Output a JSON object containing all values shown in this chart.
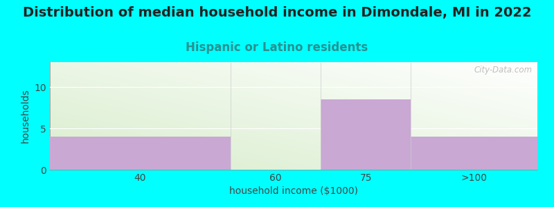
{
  "title": "Distribution of median household income in Dimondale, MI in 2022",
  "subtitle": "Hispanic or Latino residents",
  "xlabel": "household income ($1000)",
  "ylabel": "households",
  "background_color": "#00FFFF",
  "plot_bg_color_top_left": "#d8edcc",
  "plot_bg_color_bottom_right": "#ffffff",
  "bar_color": "#c9a8d4",
  "categories": [
    "40",
    "60",
    "75",
    ">100"
  ],
  "bar_lefts": [
    0.0,
    0.5,
    0.75,
    1.0
  ],
  "bar_rights": [
    0.5,
    0.75,
    1.0,
    1.35
  ],
  "values": [
    4,
    0,
    8.5,
    4
  ],
  "ylim": [
    0,
    13
  ],
  "yticks": [
    0,
    5,
    10
  ],
  "xtick_positions": [
    0.25,
    0.625,
    0.875,
    1.175
  ],
  "watermark": "City-Data.com",
  "title_fontsize": 14,
  "subtitle_fontsize": 12,
  "subtitle_color": "#2a9090",
  "axis_label_fontsize": 10,
  "tick_fontsize": 10
}
